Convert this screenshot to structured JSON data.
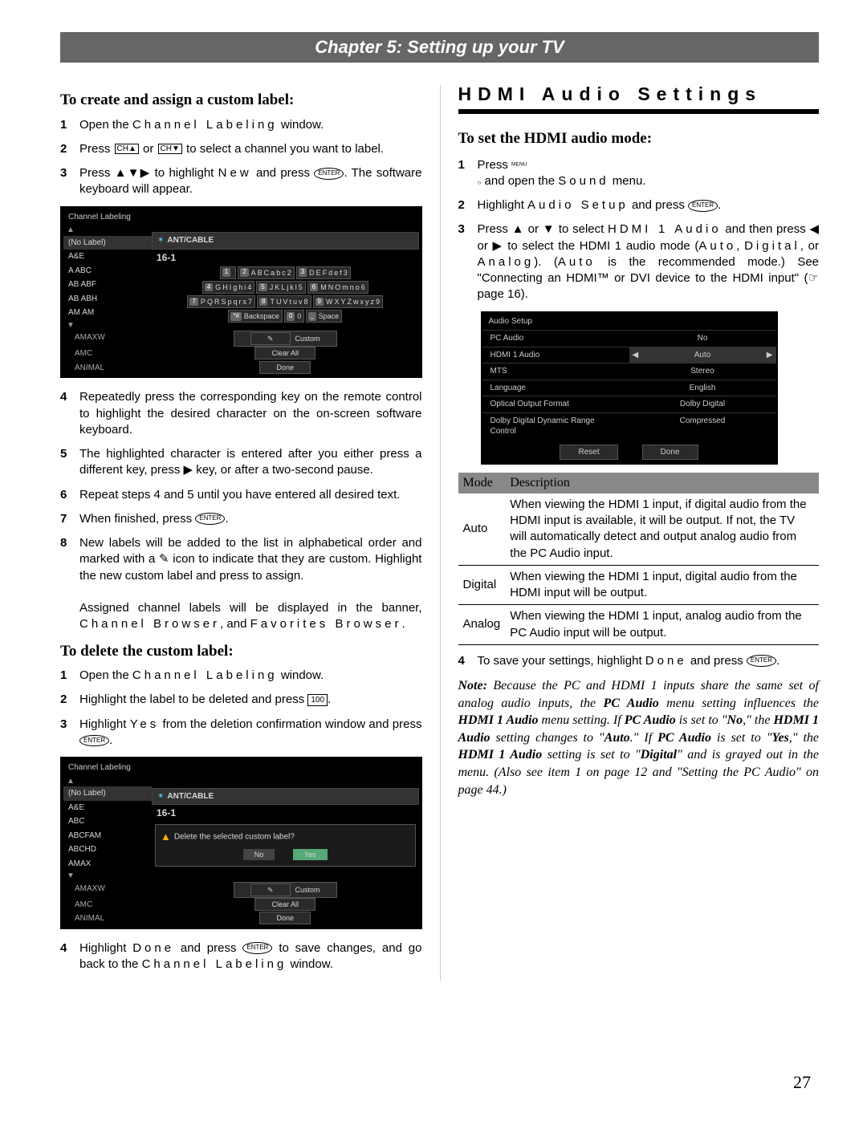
{
  "chapter_title": "Chapter 5: Setting up your TV",
  "page_number": "27",
  "left": {
    "h1": "To create and assign a custom label:",
    "s1": {
      "n": "1",
      "t1": "Open the ",
      "win": "Channel Labeling",
      "t2": " window."
    },
    "s2": {
      "n": "2",
      "t1": "Press ",
      "or": " or ",
      "t2": " to select a channel you want to label."
    },
    "ch_up": "CH▲",
    "ch_dn": "CH▼",
    "s3": {
      "n": "3",
      "t1": "Press ",
      "arrows": "▲▼▶",
      "t2": " to highlight ",
      "new": "New",
      "t3": " and press ",
      "t4": ". The software keyboard will appear."
    },
    "osd1": {
      "title": "Channel Labeling",
      "left_rows": [
        "(No Label)",
        "A&E",
        "ABC",
        "ABF",
        "ABH",
        "AM",
        "AMAXW",
        "AMC",
        "ANIMAL"
      ],
      "left_prefix": [
        "",
        "",
        "A",
        "AB",
        "AB",
        "AM",
        "",
        "",
        ""
      ],
      "antcable": "ANT/CABLE",
      "chnum": "16-1",
      "keys": [
        [
          "1",
          "",
          "2",
          "A B C a b c 2",
          "3",
          "D E F d e f 3"
        ],
        [
          "4",
          "G H I g h i 4",
          "5",
          "J K L j k l 5",
          "6",
          "M N O m n o 6"
        ],
        [
          "7",
          "P Q R S p q r s 7",
          "8",
          "T U V t u v 8",
          "9",
          "W X Y Z w x y z 9"
        ],
        [
          "*#",
          "Backspace",
          "0",
          "0",
          "⎵",
          "Space"
        ]
      ],
      "bottom": [
        [
          "AMAXW",
          "Custom",
          "✎"
        ],
        [
          "AMC",
          "Clear All",
          ""
        ],
        [
          "ANIMAL",
          "Done",
          ""
        ]
      ]
    },
    "s4": {
      "n": "4",
      "t": "Repeatedly press the corresponding key on the remote control to highlight the desired character on the on-screen software keyboard."
    },
    "s5": {
      "n": "5",
      "t1": "The highlighted character is entered after you either press a different key, press ",
      "key": "▶",
      "t2": " key, or after a two-second pause."
    },
    "s6": {
      "n": "6",
      "t": "Repeat steps 4 and 5 until you have entered all desired text."
    },
    "s7": {
      "n": "7",
      "t1": "When finished, press ",
      "t2": "."
    },
    "s8": {
      "n": "8",
      "t1": "New labels will be added to the list in alphabetical order and marked with a ",
      "icon": "✎",
      "t2": " icon to indicate that they are custom. Highlight the new custom label and press to assign.",
      "t3": "Assigned channel labels will be displayed in the banner, ",
      "cb": "Channel Browser",
      "t4": ", and ",
      "fb": "Favorites Browser",
      "t5": "."
    },
    "h2": "To delete the custom label:",
    "d1": {
      "n": "1",
      "t1": "Open the ",
      "win": "Channel Labeling",
      "t2": " window."
    },
    "d2": {
      "n": "2",
      "t1": "Highlight the label to be deleted and press ",
      "key": "100",
      "t2": "."
    },
    "d3": {
      "n": "3",
      "t1": "Highlight ",
      "yes": "Yes",
      "t2": " from the deletion confirmation window and press ",
      "t3": "."
    },
    "osd2": {
      "title": "Channel Labeling",
      "left_rows": [
        "(No Label)",
        "A&E",
        "ABC",
        "ABCFAM",
        "ABCHD",
        "AMAX",
        "AMAXW",
        "AMC",
        "ANIMAL"
      ],
      "antcable": "ANT/CABLE",
      "chnum": "16-1",
      "confirm_text": "Delete the selected custom label?",
      "no": "No",
      "yes": "Yes",
      "bottom": [
        [
          "AMAXW",
          "Custom",
          "✎"
        ],
        [
          "AMC",
          "Clear All",
          ""
        ],
        [
          "ANIMAL",
          "Done",
          ""
        ]
      ]
    },
    "d4": {
      "n": "4",
      "t1": "Highlight ",
      "done": "Done",
      "t2": " and press ",
      "t3": " to save changes, and go back to the ",
      "win": "Channel Labeling",
      "t4": " window."
    }
  },
  "right": {
    "h_band": "HDMI Audio Settings",
    "h1": "To set the HDMI audio mode:",
    "r1": {
      "n": "1",
      "t1": "Press ",
      "menu": "MENU",
      "t2": " and open the ",
      "sound": "Sound",
      "t3": " menu."
    },
    "r2": {
      "n": "2",
      "t1": "Highlight ",
      "as": "Audio Setup",
      "t2": " and press ",
      "t3": "."
    },
    "r3": {
      "n": "3",
      "t1": "Press ",
      "up": "▲",
      "or1": " or ",
      "dn": "▼",
      "t2": " to select ",
      "h1a": "HDMI 1 Audio",
      "t3": " and then press ",
      "l": "◀",
      "or2": " or ",
      "r": "▶",
      "t4": " to select the HDMI 1 audio mode (",
      "auto": "Auto",
      "c1": ", ",
      "dig": "Digital",
      "c2": ", or ",
      "ana": "Analog",
      "t5": "). (",
      "auto2": "Auto",
      "t6": " is the recommended mode.) See \"Connecting an HDMI™ or DVI device to the HDMI input\" (☞ page 16)."
    },
    "osd3": {
      "title": "Audio Setup",
      "rows": [
        {
          "k": "PC Audio",
          "v": "No"
        },
        {
          "k": "HDMI 1 Audio",
          "v": "Auto",
          "sel": true
        },
        {
          "k": "MTS",
          "v": "Stereo"
        },
        {
          "k": "Language",
          "v": "English"
        },
        {
          "k": "Optical Output Format",
          "v": "Dolby Digital"
        },
        {
          "k": "Dolby Digital Dynamic Range Control",
          "v": "Compressed"
        }
      ],
      "reset": "Reset",
      "done": "Done"
    },
    "table": {
      "h1": "Mode",
      "h2": "Description",
      "rows": [
        {
          "m": "Auto",
          "d": "When viewing the HDMI 1 input, if digital audio from the HDMI input is available, it will be output. If not, the TV will automatically detect and output analog audio from the PC Audio input."
        },
        {
          "m": "Digital",
          "d": "When viewing the HDMI 1 input, digital audio from the HDMI input will be output."
        },
        {
          "m": "Analog",
          "d": "When viewing the HDMI 1 input, analog audio from the PC Audio input will be output."
        }
      ]
    },
    "r4": {
      "n": "4",
      "t1": "To save your settings, highlight ",
      "done": "Done",
      "t2": " and press ",
      "t3": "."
    },
    "note": {
      "lead": "Note: ",
      "body": "Because the PC and HDMI 1 inputs share the same set of analog audio inputs, the <b>PC Audio</b> menu setting influences the <b>HDMI 1 Audio</b> menu setting. If <b>PC Audio</b> is set to \"<b>No</b>,\" the <b>HDMI 1 Audio</b> setting changes to \"<b>Auto</b>.\" If <b>PC Audio</b> is set to \"<b>Yes</b>,\" the <b>HDMI 1 Audio</b> setting is set to \"<b>Digital</b>\" and is grayed out in the menu. (Also see item 1 on page 12 and \"Setting the PC Audio\" on page 44.)"
    }
  },
  "enter_label": "ENTER",
  "colors": {
    "band": "#666666",
    "osd_bg": "#000000",
    "osd_fg": "#d8d8d8"
  }
}
